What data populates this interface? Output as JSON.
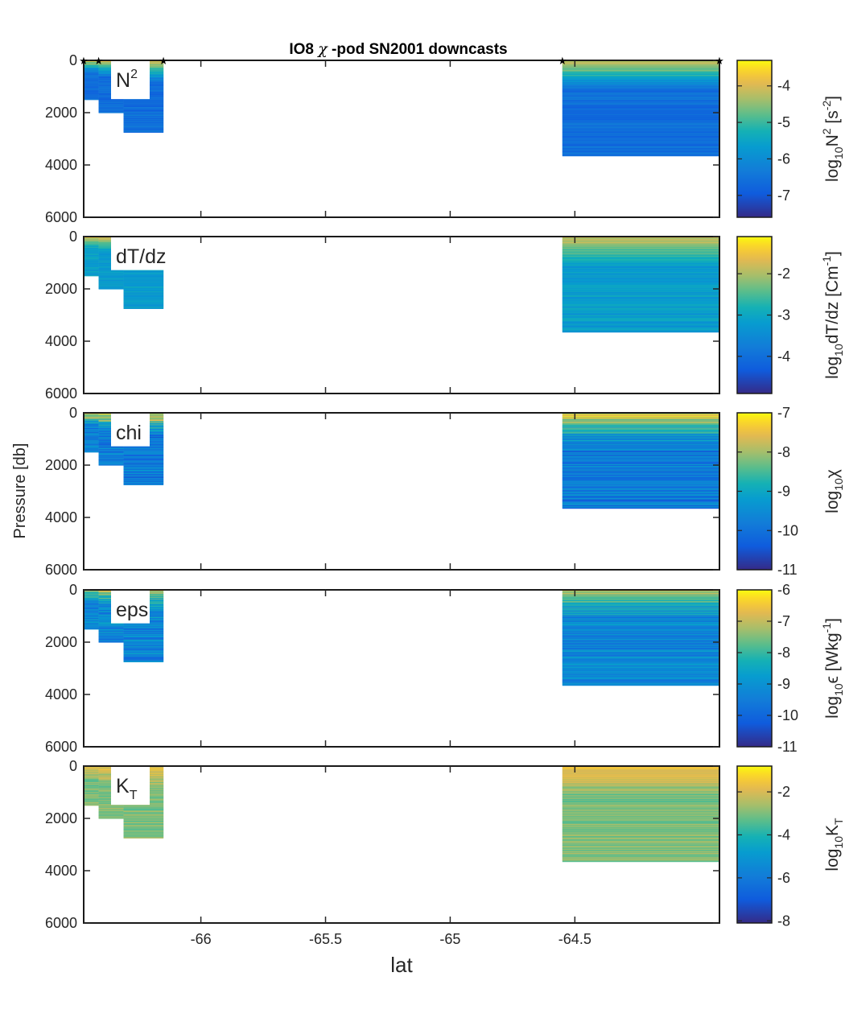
{
  "figure_title": {
    "before": "IO8 ",
    "symbol": "χ",
    "after": " -pod SN2001 downcasts"
  },
  "ylabel": "Pressure [db]",
  "xlabel": "lat",
  "colors": {
    "axis": "#262626",
    "parula_low": "#352a87",
    "parula_high": "#f9fb0e",
    "frame": "#1a1a1a"
  },
  "chart_data": {
    "type": "heatmap",
    "x_range": [
      -66.47,
      -63.92
    ],
    "x_ticks": [
      -66,
      -65.5,
      -65,
      -64.5
    ],
    "x_tick_labels": [
      "-66",
      "-65.5",
      "-65",
      "-64.5"
    ],
    "y_range": [
      0,
      6000
    ],
    "y_reversed": true,
    "y_ticks": [
      0,
      2000,
      4000,
      6000
    ],
    "y_tick_labels": [
      "0",
      "2000",
      "4000",
      "6000"
    ],
    "cast_markers": {
      "lat": [
        -66.47,
        -66.41,
        -66.15,
        -64.55,
        -63.92
      ],
      "symbol": "★"
    },
    "casts": [
      {
        "lat0": -66.47,
        "lat1": -66.41,
        "depth": 1500
      },
      {
        "lat0": -66.41,
        "lat1": -66.31,
        "depth": 2000
      },
      {
        "lat0": -66.31,
        "lat1": -66.15,
        "depth": 2750
      },
      {
        "lat0": -64.55,
        "lat1": -63.92,
        "depth": 3650
      }
    ],
    "panels": [
      {
        "name": "N2",
        "label": "N",
        "label_sup": "2",
        "label_sub": "",
        "cbar_label": {
          "pre": "log",
          "sub": "10",
          "mid": "N",
          "sup": "2",
          "post": " [s",
          "sup2": "-2",
          "post2": "]"
        },
        "clim": [
          -7.6,
          -3.3
        ],
        "cbar_ticks": [
          -7,
          -6,
          -5,
          -4
        ],
        "cbar_tick_labels": [
          "-7",
          "-6",
          "-5",
          "-4"
        ],
        "surface": -4.0,
        "deep": -6.6,
        "noise": 0.35,
        "label_box_depth": 1450
      },
      {
        "name": "dTdz",
        "label": "dT/dz",
        "label_sup": "",
        "label_sub": "",
        "cbar_label": {
          "pre": "log",
          "sub": "10",
          "mid": "dT/dz [Cm",
          "sup": "-1",
          "post": "]",
          "sup2": "",
          "post2": ""
        },
        "clim": [
          -4.9,
          -1.1
        ],
        "cbar_ticks": [
          -4,
          -3,
          -2
        ],
        "cbar_tick_labels": [
          "-4",
          "-3",
          "-2"
        ],
        "surface": -1.8,
        "deep": -3.2,
        "noise": 0.3,
        "label_box_depth": 1250
      },
      {
        "name": "chi",
        "label": "chi",
        "label_sup": "",
        "label_sub": "",
        "cbar_label": {
          "pre": "log",
          "sub": "10",
          "mid": "χ",
          "sup": "",
          "post": "",
          "sup2": "",
          "post2": ""
        },
        "clim": [
          -11,
          -7
        ],
        "cbar_ticks": [
          -11,
          -10,
          -9,
          -8,
          -7
        ],
        "cbar_tick_labels": [
          "-11",
          "-10",
          "-9",
          "-8",
          "-7"
        ],
        "surface": -7.5,
        "deep": -9.8,
        "noise": 0.7,
        "label_box_depth": 1250
      },
      {
        "name": "eps",
        "label": "eps",
        "label_sup": "",
        "label_sub": "",
        "cbar_label": {
          "pre": "log",
          "sub": "10",
          "mid": "ϵ",
          "sup": "",
          "post": " [Wkg",
          "sup2": "-1",
          "post2": "]"
        },
        "clim": [
          -11,
          -6
        ],
        "cbar_ticks": [
          -11,
          -10,
          -9,
          -8,
          -7,
          -6
        ],
        "cbar_tick_labels": [
          "-11",
          "-10",
          "-9",
          "-8",
          "-7",
          "-6"
        ],
        "surface": -7.2,
        "deep": -9.3,
        "noise": 0.8,
        "label_box_depth": 1250
      },
      {
        "name": "KT",
        "label": "K",
        "label_sup": "",
        "label_sub": "T",
        "cbar_label": {
          "pre": "log",
          "sub": "10",
          "mid": "K",
          "sup": "",
          "post": "",
          "sup2": "",
          "post2": "",
          "sub2": "T"
        },
        "clim": [
          -8.1,
          -0.8
        ],
        "cbar_ticks": [
          -8,
          -6,
          -4,
          -2
        ],
        "cbar_tick_labels": [
          "-8",
          "-6",
          "-4",
          "-2"
        ],
        "surface": -1.7,
        "deep": -3.0,
        "noise": 0.6,
        "label_box_depth": 1450
      }
    ]
  }
}
